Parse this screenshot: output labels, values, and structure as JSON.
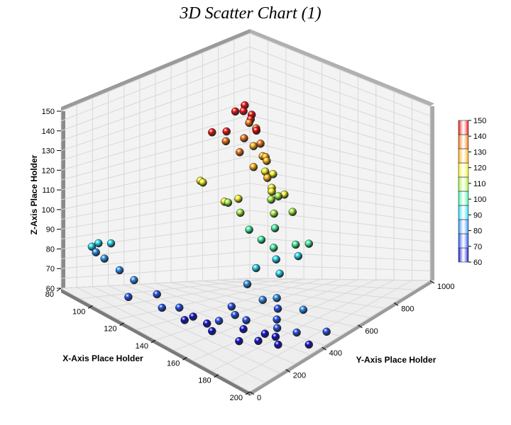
{
  "chart_data": {
    "type": "scatter",
    "title": "3D Scatter Chart (1)",
    "xlabel": "X-Axis Place Holder",
    "ylabel": "Y-Axis Place Holder",
    "zlabel": "Z-Axis Place Holder",
    "xlim": [
      80,
      200
    ],
    "ylim": [
      0,
      1000
    ],
    "zlim": [
      60,
      150
    ],
    "x_ticks": [
      "80",
      "100",
      "120",
      "140",
      "160",
      "180",
      "200"
    ],
    "y_ticks": [
      "0",
      "200",
      "400",
      "600",
      "800",
      "1000"
    ],
    "z_ticks": [
      "60",
      "70",
      "80",
      "90",
      "100",
      "110",
      "120",
      "130",
      "140",
      "150"
    ],
    "colorbar": {
      "ticks": [
        "60",
        "70",
        "80",
        "90",
        "100",
        "110",
        "120",
        "130",
        "140",
        "150"
      ],
      "colors": [
        "#1010d0",
        "#2050f0",
        "#2a8ef0",
        "#20d8f0",
        "#40f0a0",
        "#a0f040",
        "#f0f020",
        "#f8b010",
        "#f07010",
        "#f01010"
      ]
    },
    "grid": true,
    "points": [
      {
        "x": 96,
        "y": 30,
        "z": 88
      },
      {
        "x": 99,
        "y": 40,
        "z": 91
      },
      {
        "x": 104,
        "y": 65,
        "z": 93
      },
      {
        "x": 98,
        "y": 35,
        "z": 86
      },
      {
        "x": 101,
        "y": 55,
        "z": 84
      },
      {
        "x": 110,
        "y": 60,
        "z": 82
      },
      {
        "x": 115,
        "y": 95,
        "z": 79
      },
      {
        "x": 123,
        "y": 150,
        "z": 75
      },
      {
        "x": 118,
        "y": 40,
        "z": 72
      },
      {
        "x": 125,
        "y": 160,
        "z": 69
      },
      {
        "x": 130,
        "y": 210,
        "z": 71
      },
      {
        "x": 134,
        "y": 250,
        "z": 68
      },
      {
        "x": 138,
        "y": 290,
        "z": 66
      },
      {
        "x": 142,
        "y": 320,
        "z": 69
      },
      {
        "x": 145,
        "y": 380,
        "z": 73
      },
      {
        "x": 131,
        "y": 230,
        "z": 65
      },
      {
        "x": 140,
        "y": 300,
        "z": 63
      },
      {
        "x": 150,
        "y": 360,
        "z": 62
      },
      {
        "x": 155,
        "y": 420,
        "z": 64
      },
      {
        "x": 148,
        "y": 400,
        "z": 67
      },
      {
        "x": 145,
        "y": 440,
        "z": 70
      },
      {
        "x": 138,
        "y": 420,
        "z": 74
      },
      {
        "x": 152,
        "y": 480,
        "z": 66
      },
      {
        "x": 158,
        "y": 500,
        "z": 63
      },
      {
        "x": 160,
        "y": 470,
        "z": 68
      },
      {
        "x": 155,
        "y": 520,
        "z": 70
      },
      {
        "x": 150,
        "y": 560,
        "z": 72
      },
      {
        "x": 147,
        "y": 590,
        "z": 76
      },
      {
        "x": 141,
        "y": 560,
        "z": 78
      },
      {
        "x": 144,
        "y": 610,
        "z": 80
      },
      {
        "x": 136,
        "y": 520,
        "z": 84
      },
      {
        "x": 132,
        "y": 600,
        "z": 90
      },
      {
        "x": 168,
        "y": 580,
        "z": 67
      },
      {
        "x": 165,
        "y": 540,
        "z": 72
      },
      {
        "x": 172,
        "y": 640,
        "z": 75
      },
      {
        "x": 162,
        "y": 600,
        "z": 82
      },
      {
        "x": 135,
        "y": 700,
        "z": 88
      },
      {
        "x": 128,
        "y": 740,
        "z": 92
      },
      {
        "x": 124,
        "y": 760,
        "z": 96
      },
      {
        "x": 121,
        "y": 720,
        "z": 99
      },
      {
        "x": 118,
        "y": 680,
        "z": 103
      },
      {
        "x": 110,
        "y": 700,
        "z": 108
      },
      {
        "x": 107,
        "y": 660,
        "z": 112
      },
      {
        "x": 112,
        "y": 600,
        "z": 115
      },
      {
        "x": 116,
        "y": 640,
        "z": 118
      },
      {
        "x": 103,
        "y": 560,
        "z": 121
      },
      {
        "x": 130,
        "y": 840,
        "z": 94
      },
      {
        "x": 126,
        "y": 860,
        "z": 98
      },
      {
        "x": 120,
        "y": 800,
        "z": 104
      },
      {
        "x": 99,
        "y": 580,
        "z": 120
      },
      {
        "x": 132,
        "y": 880,
        "z": 101
      },
      {
        "x": 117,
        "y": 820,
        "z": 110
      },
      {
        "x": 114,
        "y": 900,
        "z": 118
      },
      {
        "x": 108,
        "y": 860,
        "z": 124
      },
      {
        "x": 104,
        "y": 820,
        "z": 128
      },
      {
        "x": 100,
        "y": 780,
        "z": 134
      },
      {
        "x": 96,
        "y": 740,
        "z": 138
      },
      {
        "x": 92,
        "y": 700,
        "z": 141
      },
      {
        "x": 94,
        "y": 760,
        "z": 142
      },
      {
        "x": 98,
        "y": 820,
        "z": 140
      },
      {
        "x": 101,
        "y": 860,
        "z": 145
      },
      {
        "x": 95,
        "y": 880,
        "z": 148
      },
      {
        "x": 90,
        "y": 840,
        "z": 150
      },
      {
        "x": 88,
        "y": 900,
        "z": 149
      },
      {
        "x": 84,
        "y": 940,
        "z": 150
      },
      {
        "x": 86,
        "y": 960,
        "z": 146
      },
      {
        "x": 82,
        "y": 980,
        "z": 140
      },
      {
        "x": 84,
        "y": 1000,
        "z": 138
      },
      {
        "x": 88,
        "y": 990,
        "z": 132
      },
      {
        "x": 92,
        "y": 990,
        "z": 125
      },
      {
        "x": 96,
        "y": 990,
        "z": 120
      },
      {
        "x": 93,
        "y": 960,
        "z": 128
      },
      {
        "x": 97,
        "y": 940,
        "z": 122
      },
      {
        "x": 100,
        "y": 950,
        "z": 115
      },
      {
        "x": 103,
        "y": 960,
        "z": 112
      },
      {
        "x": 102,
        "y": 930,
        "z": 110
      },
      {
        "x": 90,
        "y": 1000,
        "z": 126
      },
      {
        "x": 86,
        "y": 970,
        "z": 130
      },
      {
        "x": 106,
        "y": 900,
        "z": 116
      },
      {
        "x": 112,
        "y": 960,
        "z": 108
      }
    ]
  }
}
